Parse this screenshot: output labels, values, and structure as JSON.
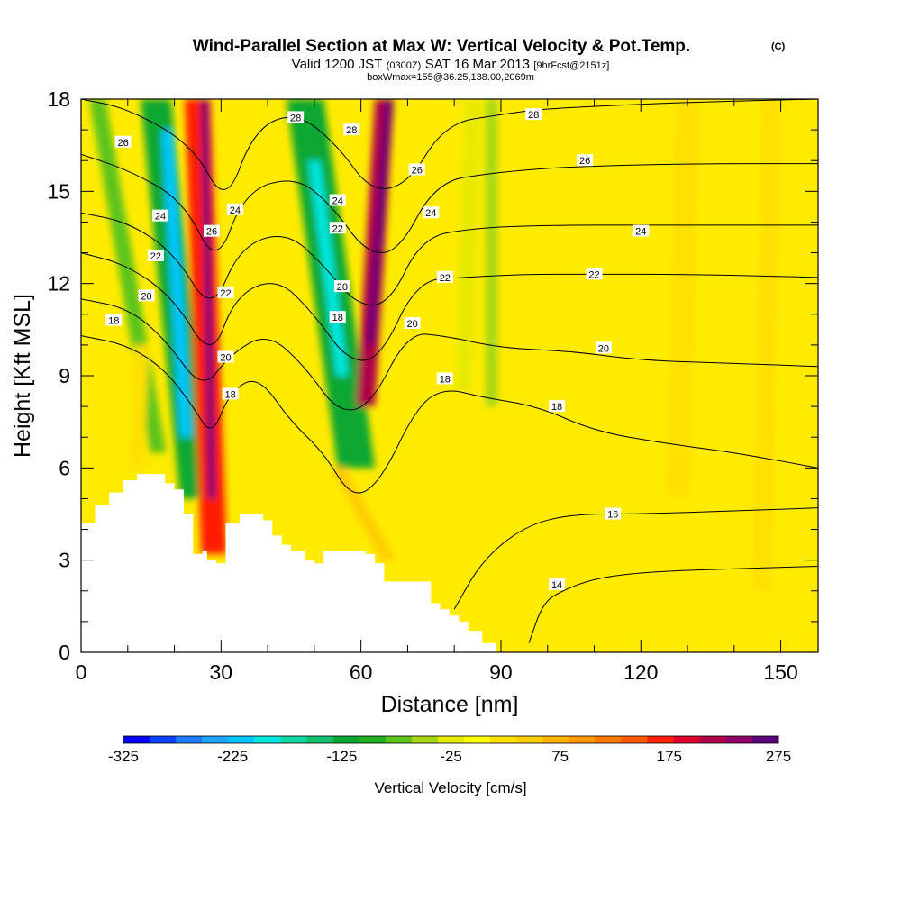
{
  "chart_data": {
    "type": "heatmap",
    "title": "Wind-Parallel Section at Max W: Vertical Velocity & Pot.Temp.",
    "title_mark": "(C)",
    "subtitle": {
      "valid_prefix": "Valid 1200 JST",
      "utc": "(0300Z)",
      "date": "SAT 16 Mar 2013",
      "forecast": "[9hrFcst@2151z]"
    },
    "subtitle2": "boxWmax=155@36.25,138.00,2069m",
    "xlabel": "Distance [nm]",
    "ylabel": "Height [Kft MSL]",
    "xlim": [
      0,
      158
    ],
    "ylim": [
      0,
      18
    ],
    "x_ticks": [
      0,
      30,
      60,
      90,
      120,
      150
    ],
    "y_ticks": [
      0,
      3,
      6,
      9,
      12,
      15,
      18
    ],
    "x_tick_labels": [
      "0",
      "30",
      "60",
      "90",
      "120",
      "150"
    ],
    "y_tick_labels": [
      "0",
      "3",
      "6",
      "9",
      "12",
      "15",
      "18"
    ],
    "colorbar": {
      "label": "Vertical Velocity [cm/s]",
      "min": -325,
      "max": 275,
      "step": 25,
      "tick_values": [
        -325,
        -225,
        -125,
        -25,
        75,
        175,
        275
      ],
      "tick_labels": [
        "-325",
        "-225",
        "-125",
        "-25",
        "75",
        "175",
        "275"
      ],
      "colors": [
        "#0000ff",
        "#0a42ff",
        "#1e7dff",
        "#1ea5ff",
        "#00c8ff",
        "#00e8e0",
        "#10d8a0",
        "#12c070",
        "#0aa830",
        "#1faf1f",
        "#5cc41f",
        "#a6d712",
        "#e6ea00",
        "#ffff00",
        "#ffe000",
        "#ffcc00",
        "#ffb400",
        "#ff9a00",
        "#ff7800",
        "#ff5a00",
        "#ff1e00",
        "#e0002a",
        "#b0004a",
        "#90006a",
        "#5a007a"
      ]
    },
    "background_color": "#ffeb00",
    "terrain": [
      [
        0,
        4.2
      ],
      [
        3,
        4.2
      ],
      [
        3,
        4.8
      ],
      [
        6,
        4.8
      ],
      [
        6,
        5.2
      ],
      [
        9,
        5.2
      ],
      [
        9,
        5.6
      ],
      [
        12,
        5.6
      ],
      [
        12,
        5.8
      ],
      [
        14,
        5.8
      ],
      [
        14,
        5.8
      ],
      [
        18,
        5.8
      ],
      [
        18,
        5.5
      ],
      [
        20,
        5.5
      ],
      [
        20,
        5.3
      ],
      [
        22,
        5.3
      ],
      [
        22,
        4.5
      ],
      [
        24,
        4.5
      ],
      [
        24,
        3.2
      ],
      [
        26,
        3.2
      ],
      [
        26,
        3.3
      ],
      [
        27,
        3.3
      ],
      [
        27,
        3.0
      ],
      [
        29,
        3.0
      ],
      [
        29,
        2.9
      ],
      [
        31,
        2.9
      ],
      [
        31,
        4.2
      ],
      [
        34,
        4.2
      ],
      [
        34,
        4.5
      ],
      [
        39,
        4.5
      ],
      [
        39,
        4.3
      ],
      [
        41,
        4.3
      ],
      [
        41,
        3.8
      ],
      [
        43,
        3.8
      ],
      [
        43,
        3.5
      ],
      [
        45,
        3.5
      ],
      [
        45,
        3.3
      ],
      [
        48,
        3.3
      ],
      [
        48,
        3.0
      ],
      [
        50,
        3.0
      ],
      [
        50,
        2.9
      ],
      [
        52,
        2.9
      ],
      [
        52,
        3.3
      ],
      [
        61,
        3.3
      ],
      [
        61,
        3.2
      ],
      [
        63,
        3.2
      ],
      [
        63,
        2.9
      ],
      [
        65,
        2.9
      ],
      [
        65,
        2.3
      ],
      [
        75,
        2.3
      ],
      [
        75,
        1.6
      ],
      [
        77,
        1.6
      ],
      [
        77,
        1.4
      ],
      [
        79,
        1.4
      ],
      [
        79,
        1.2
      ],
      [
        81,
        1.2
      ],
      [
        81,
        1.0
      ],
      [
        83,
        1.0
      ],
      [
        83,
        0.7
      ],
      [
        86,
        0.7
      ],
      [
        86,
        0.3
      ],
      [
        89,
        0.3
      ],
      [
        89,
        0.0
      ],
      [
        0,
        0.0
      ]
    ],
    "velocity_features": [
      {
        "x": 3.5,
        "y0": 18,
        "x1": 16.5,
        "y1": 6.5,
        "w": 3.5,
        "value": -60
      },
      {
        "x": 16,
        "y0": 18,
        "x1": 24.5,
        "y1": 5.0,
        "w": 6.5,
        "value": -120
      },
      {
        "x": 18.5,
        "y0": 17,
        "x1": 22.5,
        "y1": 7.0,
        "w": 2.5,
        "value": -210
      },
      {
        "x": 25,
        "y0": 18,
        "x1": 28.5,
        "y1": 3.2,
        "w": 5.5,
        "value": 195
      },
      {
        "x": 26.5,
        "y0": 18,
        "x1": 28,
        "y1": 5.0,
        "w": 1.5,
        "value": 275
      },
      {
        "x": 48,
        "y0": 18,
        "x1": 59,
        "y1": 6.0,
        "w": 8.0,
        "value": -110
      },
      {
        "x": 50,
        "y0": 16,
        "x1": 56,
        "y1": 9.0,
        "w": 2.5,
        "value": -190
      },
      {
        "x": 65,
        "y0": 18,
        "x1": 61,
        "y1": 8.0,
        "w": 4.0,
        "value": 230
      },
      {
        "x": 66,
        "y0": 18,
        "x1": 62,
        "y1": 10.0,
        "w": 1.5,
        "value": 275
      },
      {
        "x": 84,
        "y0": 18,
        "x1": 82,
        "y1": 8.5,
        "w": 3.5,
        "value": -20
      },
      {
        "x": 88,
        "y0": 18,
        "x1": 88,
        "y1": 8.0,
        "w": 2.5,
        "value": -40
      },
      {
        "x": 55,
        "y0": 6,
        "x1": 66,
        "y1": 3.0,
        "w": 3.0,
        "value": 50
      },
      {
        "x": 13,
        "y0": 10,
        "x1": 12,
        "y1": 6.0,
        "w": 3.0,
        "value": 45
      },
      {
        "x": 130,
        "y0": 18,
        "x1": 128,
        "y1": 5.0,
        "w": 5.0,
        "value": 35
      },
      {
        "x": 148,
        "y0": 18,
        "x1": 146,
        "y1": 2.0,
        "w": 4.0,
        "value": 30
      }
    ],
    "contours": [
      {
        "value": 14,
        "points": [
          [
            96,
            0.3
          ],
          [
            99,
            1.6
          ],
          [
            103,
            2.0
          ],
          [
            110,
            2.4
          ],
          [
            120,
            2.6
          ],
          [
            135,
            2.7
          ],
          [
            158,
            2.8
          ]
        ]
      },
      {
        "value": 16,
        "points": [
          [
            80,
            1.4
          ],
          [
            86,
            3.0
          ],
          [
            95,
            4.1
          ],
          [
            105,
            4.5
          ],
          [
            120,
            4.5
          ],
          [
            140,
            4.6
          ],
          [
            158,
            4.7
          ]
        ]
      },
      {
        "value": 18,
        "points": [
          [
            0,
            10.3
          ],
          [
            10,
            10.0
          ],
          [
            18,
            9.2
          ],
          [
            24,
            8.0
          ],
          [
            28,
            7.0
          ],
          [
            32,
            8.5
          ],
          [
            38,
            9.0
          ],
          [
            45,
            7.5
          ],
          [
            52,
            6.5
          ],
          [
            58,
            5.0
          ],
          [
            64,
            5.5
          ],
          [
            72,
            8.0
          ],
          [
            78,
            8.6
          ],
          [
            86,
            8.3
          ],
          [
            98,
            8.0
          ],
          [
            110,
            7.2
          ],
          [
            125,
            6.8
          ],
          [
            140,
            6.5
          ],
          [
            158,
            6.0
          ]
        ]
      },
      {
        "value": 20,
        "points": [
          [
            0,
            11.5
          ],
          [
            10,
            11.2
          ],
          [
            18,
            10.2
          ],
          [
            26,
            8.5
          ],
          [
            32,
            9.7
          ],
          [
            40,
            10.4
          ],
          [
            48,
            9.3
          ],
          [
            55,
            7.8
          ],
          [
            62,
            8.0
          ],
          [
            70,
            10.4
          ],
          [
            78,
            10.3
          ],
          [
            90,
            9.9
          ],
          [
            105,
            9.8
          ],
          [
            120,
            9.5
          ],
          [
            140,
            9.4
          ],
          [
            158,
            9.3
          ]
        ]
      },
      {
        "value": 22,
        "points": [
          [
            0,
            13.0
          ],
          [
            10,
            12.6
          ],
          [
            20,
            11.5
          ],
          [
            28,
            9.5
          ],
          [
            33,
            11.6
          ],
          [
            42,
            12.2
          ],
          [
            50,
            11.0
          ],
          [
            57,
            9.5
          ],
          [
            64,
            9.5
          ],
          [
            72,
            12.1
          ],
          [
            82,
            12.2
          ],
          [
            95,
            12.3
          ],
          [
            110,
            12.3
          ],
          [
            130,
            12.3
          ],
          [
            158,
            12.2
          ]
        ]
      },
      {
        "value": 24,
        "points": [
          [
            0,
            14.3
          ],
          [
            10,
            14.0
          ],
          [
            20,
            13.0
          ],
          [
            28,
            11.0
          ],
          [
            34,
            13.2
          ],
          [
            44,
            13.7
          ],
          [
            52,
            12.6
          ],
          [
            59,
            11.3
          ],
          [
            66,
            11.3
          ],
          [
            73,
            13.5
          ],
          [
            84,
            13.8
          ],
          [
            100,
            13.9
          ],
          [
            120,
            13.9
          ],
          [
            158,
            13.9
          ]
        ]
      },
      {
        "value": 26,
        "points": [
          [
            0,
            16.2
          ],
          [
            10,
            15.7
          ],
          [
            22,
            14.7
          ],
          [
            29,
            12.5
          ],
          [
            35,
            15.0
          ],
          [
            46,
            15.5
          ],
          [
            54,
            14.5
          ],
          [
            61,
            13.0
          ],
          [
            68,
            13.0
          ],
          [
            76,
            15.3
          ],
          [
            88,
            15.6
          ],
          [
            104,
            15.8
          ],
          [
            130,
            15.9
          ],
          [
            158,
            15.9
          ]
        ]
      },
      {
        "value": 28,
        "points": [
          [
            0,
            18.0
          ],
          [
            10,
            17.7
          ],
          [
            24,
            16.5
          ],
          [
            31,
            14.5
          ],
          [
            37,
            17.0
          ],
          [
            46,
            17.6
          ],
          [
            55,
            16.5
          ],
          [
            62,
            15.0
          ],
          [
            70,
            15.2
          ],
          [
            78,
            17.2
          ],
          [
            90,
            17.5
          ],
          [
            100,
            17.7
          ],
          [
            130,
            17.9
          ],
          [
            158,
            18.0
          ]
        ]
      }
    ],
    "contour_labels": [
      {
        "text": "26",
        "x": 9,
        "y": 16.6
      },
      {
        "text": "28",
        "x": 46,
        "y": 17.4
      },
      {
        "text": "28",
        "x": 58,
        "y": 17.0
      },
      {
        "text": "28",
        "x": 97,
        "y": 17.5
      },
      {
        "text": "26",
        "x": 72,
        "y": 15.7
      },
      {
        "text": "26",
        "x": 108,
        "y": 16.0
      },
      {
        "text": "24",
        "x": 17,
        "y": 14.2
      },
      {
        "text": "24",
        "x": 33,
        "y": 14.4
      },
      {
        "text": "24",
        "x": 55,
        "y": 14.7
      },
      {
        "text": "24",
        "x": 75,
        "y": 14.3
      },
      {
        "text": "24",
        "x": 120,
        "y": 13.7
      },
      {
        "text": "26",
        "x": 28,
        "y": 13.7
      },
      {
        "text": "22",
        "x": 16,
        "y": 12.9
      },
      {
        "text": "22",
        "x": 55,
        "y": 13.8
      },
      {
        "text": "22",
        "x": 78,
        "y": 12.2
      },
      {
        "text": "22",
        "x": 110,
        "y": 12.3
      },
      {
        "text": "22",
        "x": 31,
        "y": 11.7
      },
      {
        "text": "20",
        "x": 14,
        "y": 11.6
      },
      {
        "text": "20",
        "x": 56,
        "y": 11.9
      },
      {
        "text": "20",
        "x": 71,
        "y": 10.7
      },
      {
        "text": "20",
        "x": 112,
        "y": 9.9
      },
      {
        "text": "18",
        "x": 7,
        "y": 10.8
      },
      {
        "text": "18",
        "x": 55,
        "y": 10.9
      },
      {
        "text": "20",
        "x": 31,
        "y": 9.6
      },
      {
        "text": "18",
        "x": 32,
        "y": 8.4
      },
      {
        "text": "18",
        "x": 78,
        "y": 8.9
      },
      {
        "text": "18",
        "x": 102,
        "y": 8.0
      },
      {
        "text": "16",
        "x": 114,
        "y": 4.5
      },
      {
        "text": "14",
        "x": 102,
        "y": 2.2
      }
    ]
  }
}
